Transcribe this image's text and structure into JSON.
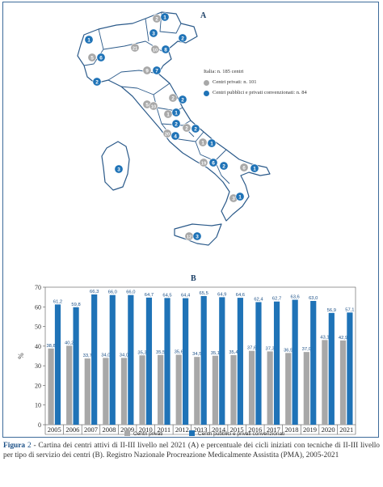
{
  "colors": {
    "private": "#a8a8a8",
    "public": "#1f73b7",
    "border": "#3d6b9a",
    "value_label": "#1a4f86",
    "map_fill": "#ffffff",
    "map_stroke": "#2b5a8a"
  },
  "map": {
    "panel_letter": "A",
    "legend": {
      "total": "Italia: n. 185 centri",
      "private": "Centri privati: n. 101",
      "public": "Centri pubblici e privati convenzionati: n. 84"
    },
    "markers": [
      {
        "type": "private",
        "label": "2"
      },
      {
        "type": "public",
        "label": "1"
      },
      {
        "type": "public",
        "label": "1"
      },
      {
        "type": "public",
        "label": "3"
      },
      {
        "type": "public",
        "label": "2"
      },
      {
        "type": "private",
        "label": "21"
      },
      {
        "type": "private",
        "label": "5"
      },
      {
        "type": "public",
        "label": "6"
      },
      {
        "type": "private",
        "label": "10"
      },
      {
        "type": "public",
        "label": "8"
      },
      {
        "type": "public",
        "label": "2"
      },
      {
        "type": "private",
        "label": "9"
      },
      {
        "type": "public",
        "label": "7"
      },
      {
        "type": "private",
        "label": "2"
      },
      {
        "type": "public",
        "label": "2"
      },
      {
        "type": "private",
        "label": "5"
      },
      {
        "type": "private",
        "label": "10"
      },
      {
        "type": "private",
        "label": "1"
      },
      {
        "type": "public",
        "label": "1"
      },
      {
        "type": "public",
        "label": "2"
      },
      {
        "type": "private",
        "label": "2"
      },
      {
        "type": "public",
        "label": "2"
      },
      {
        "type": "private",
        "label": "20"
      },
      {
        "type": "public",
        "label": "4"
      },
      {
        "type": "private",
        "label": "1"
      },
      {
        "type": "public",
        "label": "1"
      },
      {
        "type": "private",
        "label": "19"
      },
      {
        "type": "public",
        "label": "6"
      },
      {
        "type": "public",
        "label": "2"
      },
      {
        "type": "private",
        "label": "6"
      },
      {
        "type": "public",
        "label": "1"
      },
      {
        "type": "public",
        "label": "3"
      },
      {
        "type": "private",
        "label": "3"
      },
      {
        "type": "public",
        "label": "1"
      },
      {
        "type": "private",
        "label": "12"
      },
      {
        "type": "public",
        "label": "3"
      }
    ]
  },
  "chart_data": {
    "type": "bar",
    "panel_letter": "B",
    "categories": [
      "2005",
      "2006",
      "2007",
      "2008",
      "2009",
      "2010",
      "2011",
      "2012",
      "2013",
      "2014",
      "2015",
      "2016",
      "2017",
      "2018",
      "2019",
      "2020",
      "2021"
    ],
    "series": [
      {
        "name": "Centri privati",
        "color": "#a8a8a8",
        "values": [
          38.8,
          40.2,
          33.7,
          34.0,
          34.0,
          35.3,
          35.5,
          35.6,
          34.5,
          35.1,
          35.4,
          37.6,
          37.3,
          36.5,
          37.0,
          43.1,
          42.9
        ],
        "labels": [
          "38,8",
          "40,2",
          "33,7",
          "34,0",
          "34,0",
          "35,3",
          "35,5",
          "35,6",
          "34,5",
          "35,1",
          "35,4",
          "37,6",
          "37,3",
          "36,5",
          "37,0",
          "43,1",
          "42,9"
        ]
      },
      {
        "name": "Centri pubblici e privati convenzionati",
        "color": "#1f73b7",
        "values": [
          61.2,
          59.8,
          66.3,
          66.0,
          66.0,
          64.7,
          64.5,
          64.4,
          65.5,
          64.9,
          64.6,
          62.4,
          62.7,
          63.6,
          63.0,
          56.9,
          57.1
        ],
        "labels": [
          "61,2",
          "59,8",
          "66,3",
          "66,0",
          "66,0",
          "64,7",
          "64,5",
          "64,4",
          "65,5",
          "64,9",
          "64,6",
          "62,4",
          "62,7",
          "63,6",
          "63,0",
          "56,9",
          "57,1"
        ]
      }
    ],
    "yticks": [
      "0",
      "10",
      "20",
      "30",
      "40",
      "50",
      "60",
      "70"
    ],
    "ylabel": "%",
    "ylim": [
      0,
      70
    ],
    "grid": false,
    "legend_position": "bottom"
  },
  "caption": {
    "label": "Figura",
    "number": "2",
    "text": " - Cartina dei centri attivi di II-III livello nel 2021 (A) e percentuale dei cicli iniziati con tecniche di II-III livello per tipo di servizio dei centri (B). Registro Nazionale Procreazione Medicalmente Assistita (PMA), 2005-2021"
  }
}
